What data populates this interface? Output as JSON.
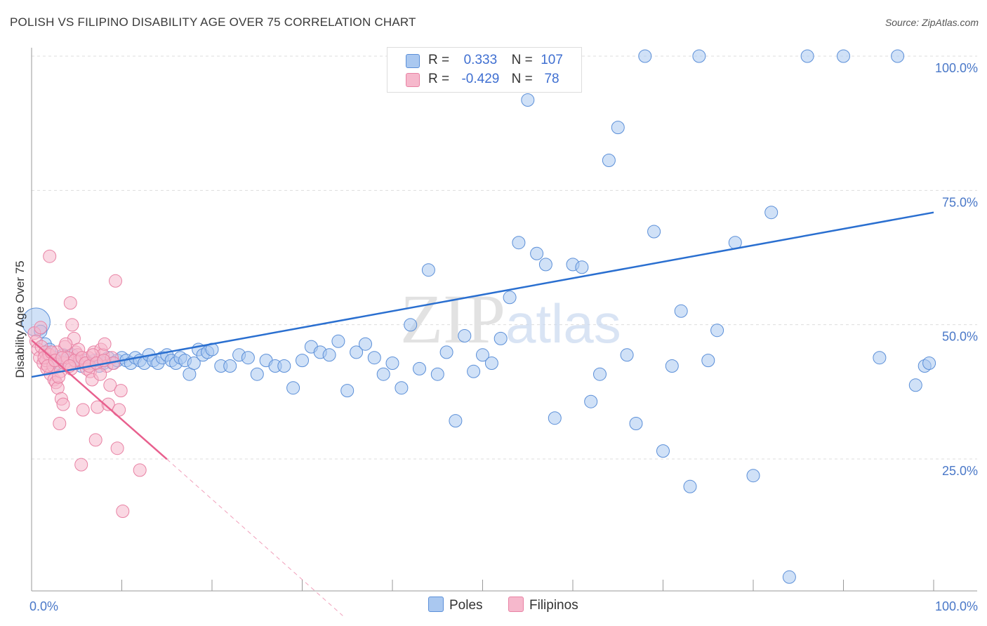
{
  "title": "POLISH VS FILIPINO DISABILITY AGE OVER 75 CORRELATION CHART",
  "source": "Source: ZipAtlas.com",
  "watermark": {
    "zip": "ZIP",
    "atlas": "atlas"
  },
  "legend": {
    "poles": {
      "r_label": "R =",
      "r_value": "0.333",
      "n_label": "N =",
      "n_value": "107"
    },
    "filipinos": {
      "r_label": "R =",
      "r_value": "-0.429",
      "n_label": "N =",
      "n_value": "78"
    }
  },
  "bottom_legend": {
    "poles": "Poles",
    "filipinos": "Filipinos"
  },
  "colors": {
    "poles_fill": "#aac8f0",
    "poles_stroke": "#5b8fd8",
    "poles_line": "#2a6fd0",
    "filipinos_fill": "#f6b8cc",
    "filipinos_stroke": "#e882a4",
    "filipinos_line": "#e8608e",
    "axis_text": "#4a78c8",
    "grid": "#dddddd"
  },
  "chart_data": {
    "type": "scatter",
    "title": "POLISH VS FILIPINO DISABILITY AGE OVER 75 CORRELATION CHART",
    "xlabel": "",
    "ylabel": "Disability Age Over 75",
    "xlim": [
      0,
      100
    ],
    "ylim": [
      0,
      102
    ],
    "x_tick_labels": [
      "0.0%",
      "100.0%"
    ],
    "y_ticks": [
      25,
      50,
      75,
      100
    ],
    "y_tick_labels": [
      "25.0%",
      "50.0%",
      "75.0%",
      "100.0%"
    ],
    "series": [
      {
        "name": "Poles",
        "trend": {
          "x": [
            0,
            100
          ],
          "y": [
            41.5,
            71.5
          ]
        },
        "points": [
          [
            0.5,
            51.5
          ],
          [
            1.0,
            49.8
          ],
          [
            1.5,
            47.5
          ],
          [
            2.0,
            46.5
          ],
          [
            2.5,
            45.0
          ],
          [
            3.0,
            44.0
          ],
          [
            3.5,
            45.5
          ],
          [
            4.0,
            44.5
          ],
          [
            4.5,
            45.5
          ],
          [
            5.0,
            44.0
          ],
          [
            5.5,
            43.5
          ],
          [
            6.0,
            44.5
          ],
          [
            6.5,
            44.0
          ],
          [
            7.0,
            44.5
          ],
          [
            7.5,
            43.5
          ],
          [
            8.0,
            44.0
          ],
          [
            8.5,
            45.0
          ],
          [
            9.0,
            44.0
          ],
          [
            9.5,
            44.5
          ],
          [
            10.0,
            45.0
          ],
          [
            10.5,
            44.5
          ],
          [
            11.0,
            44.0
          ],
          [
            11.5,
            45.0
          ],
          [
            12.0,
            44.5
          ],
          [
            12.5,
            44.0
          ],
          [
            13.0,
            45.5
          ],
          [
            13.5,
            44.5
          ],
          [
            14.0,
            44.0
          ],
          [
            14.5,
            45.0
          ],
          [
            15.0,
            45.5
          ],
          [
            15.5,
            44.5
          ],
          [
            16.0,
            44.0
          ],
          [
            16.5,
            45.0
          ],
          [
            17.0,
            44.5
          ],
          [
            17.5,
            42.0
          ],
          [
            18.0,
            44.0
          ],
          [
            18.5,
            46.5
          ],
          [
            19.0,
            45.5
          ],
          [
            19.5,
            46.0
          ],
          [
            20.0,
            46.5
          ],
          [
            21.0,
            43.5
          ],
          [
            22.0,
            43.5
          ],
          [
            23.0,
            45.5
          ],
          [
            24.0,
            45.0
          ],
          [
            25.0,
            42.0
          ],
          [
            26.0,
            44.5
          ],
          [
            27.0,
            43.5
          ],
          [
            28.0,
            43.5
          ],
          [
            29.0,
            39.5
          ],
          [
            30.0,
            44.5
          ],
          [
            31.0,
            47.0
          ],
          [
            32.0,
            46.0
          ],
          [
            33.0,
            45.5
          ],
          [
            34.0,
            48.0
          ],
          [
            35.0,
            39.0
          ],
          [
            36.0,
            46.0
          ],
          [
            37.0,
            47.5
          ],
          [
            38.0,
            45.0
          ],
          [
            39.0,
            42.0
          ],
          [
            40.0,
            44.0
          ],
          [
            41.0,
            39.5
          ],
          [
            42.0,
            51.0
          ],
          [
            43.0,
            43.0
          ],
          [
            44.0,
            61.0
          ],
          [
            45.0,
            42.0
          ],
          [
            46.0,
            46.0
          ],
          [
            47.0,
            33.5
          ],
          [
            48.0,
            49.0
          ],
          [
            49.0,
            42.5
          ],
          [
            50.0,
            45.5
          ],
          [
            51.0,
            44.0
          ],
          [
            52.0,
            48.5
          ],
          [
            53.0,
            56.0
          ],
          [
            54.0,
            66.0
          ],
          [
            55.0,
            92.0
          ],
          [
            56.0,
            64.0
          ],
          [
            57.0,
            62.0
          ],
          [
            58.0,
            34.0
          ],
          [
            59.0,
            100.0
          ],
          [
            60.0,
            62.0
          ],
          [
            61.0,
            61.5
          ],
          [
            62.0,
            37.0
          ],
          [
            63.0,
            42.0
          ],
          [
            64.0,
            81.0
          ],
          [
            65.0,
            87.0
          ],
          [
            66.0,
            45.5
          ],
          [
            67.0,
            33.0
          ],
          [
            68.0,
            100.0
          ],
          [
            69.0,
            68.0
          ],
          [
            70.0,
            28.0
          ],
          [
            71.0,
            43.5
          ],
          [
            72.0,
            53.5
          ],
          [
            73.0,
            21.5
          ],
          [
            74.0,
            100.0
          ],
          [
            75.0,
            44.5
          ],
          [
            76.0,
            50.0
          ],
          [
            78.0,
            66.0
          ],
          [
            80.0,
            23.5
          ],
          [
            82.0,
            71.5
          ],
          [
            84.0,
            5.0
          ],
          [
            86.0,
            100.0
          ],
          [
            90.0,
            100.0
          ],
          [
            94.0,
            45.0
          ],
          [
            96.0,
            100.0
          ],
          [
            98.0,
            40.0
          ],
          [
            99.0,
            43.5
          ],
          [
            99.5,
            44.0
          ]
        ]
      },
      {
        "name": "Filipinos",
        "trend": {
          "x": [
            0,
            15
          ],
          "y": [
            48.2,
            26.5
          ]
        },
        "trend_extended": {
          "x": [
            15,
            34.5
          ],
          "y": [
            26.5,
            0
          ]
        },
        "points": [
          [
            0.3,
            49.5
          ],
          [
            0.5,
            48.0
          ],
          [
            0.7,
            46.5
          ],
          [
            0.9,
            45.0
          ],
          [
            1.1,
            47.0
          ],
          [
            1.3,
            44.0
          ],
          [
            1.5,
            46.0
          ],
          [
            1.7,
            43.0
          ],
          [
            1.9,
            45.5
          ],
          [
            2.1,
            42.0
          ],
          [
            2.3,
            44.5
          ],
          [
            2.5,
            41.0
          ],
          [
            2.7,
            40.5
          ],
          [
            2.9,
            39.5
          ],
          [
            3.1,
            33.0
          ],
          [
            3.3,
            37.5
          ],
          [
            3.5,
            36.5
          ],
          [
            3.7,
            47.0
          ],
          [
            3.9,
            45.0
          ],
          [
            4.1,
            44.0
          ],
          [
            4.3,
            55.0
          ],
          [
            4.5,
            51.0
          ],
          [
            4.7,
            48.5
          ],
          [
            4.9,
            46.0
          ],
          [
            5.1,
            45.5
          ],
          [
            5.3,
            44.5
          ],
          [
            5.5,
            25.5
          ],
          [
            5.7,
            35.5
          ],
          [
            5.9,
            44.0
          ],
          [
            6.1,
            43.0
          ],
          [
            6.3,
            45.0
          ],
          [
            6.5,
            42.5
          ],
          [
            6.7,
            41.0
          ],
          [
            6.9,
            46.0
          ],
          [
            7.1,
            30.0
          ],
          [
            7.3,
            36.0
          ],
          [
            7.5,
            44.5
          ],
          [
            7.7,
            46.5
          ],
          [
            7.9,
            45.5
          ],
          [
            8.1,
            47.5
          ],
          [
            8.3,
            43.5
          ],
          [
            8.5,
            36.5
          ],
          [
            8.7,
            40.0
          ],
          [
            8.9,
            45.0
          ],
          [
            9.1,
            44.0
          ],
          [
            9.3,
            59.0
          ],
          [
            9.5,
            28.5
          ],
          [
            9.7,
            35.5
          ],
          [
            9.9,
            39.0
          ],
          [
            10.1,
            17.0
          ],
          [
            1.0,
            50.5
          ],
          [
            1.6,
            44.5
          ],
          [
            2.0,
            45.5
          ],
          [
            2.4,
            43.5
          ],
          [
            2.8,
            46.0
          ],
          [
            3.2,
            42.5
          ],
          [
            3.6,
            44.0
          ],
          [
            4.0,
            45.0
          ],
          [
            4.4,
            43.0
          ],
          [
            4.8,
            44.5
          ],
          [
            5.2,
            46.5
          ],
          [
            5.6,
            45.0
          ],
          [
            6.0,
            44.0
          ],
          [
            6.4,
            43.5
          ],
          [
            6.8,
            45.5
          ],
          [
            7.2,
            44.0
          ],
          [
            7.6,
            42.0
          ],
          [
            8.0,
            44.5
          ],
          [
            2.0,
            63.5
          ],
          [
            12.0,
            24.5
          ],
          [
            1.4,
            45.0
          ],
          [
            1.8,
            43.5
          ],
          [
            2.2,
            46.0
          ],
          [
            2.6,
            44.5
          ],
          [
            3.0,
            41.5
          ],
          [
            3.4,
            45.0
          ],
          [
            3.8,
            47.5
          ],
          [
            4.2,
            43.5
          ]
        ]
      }
    ]
  }
}
